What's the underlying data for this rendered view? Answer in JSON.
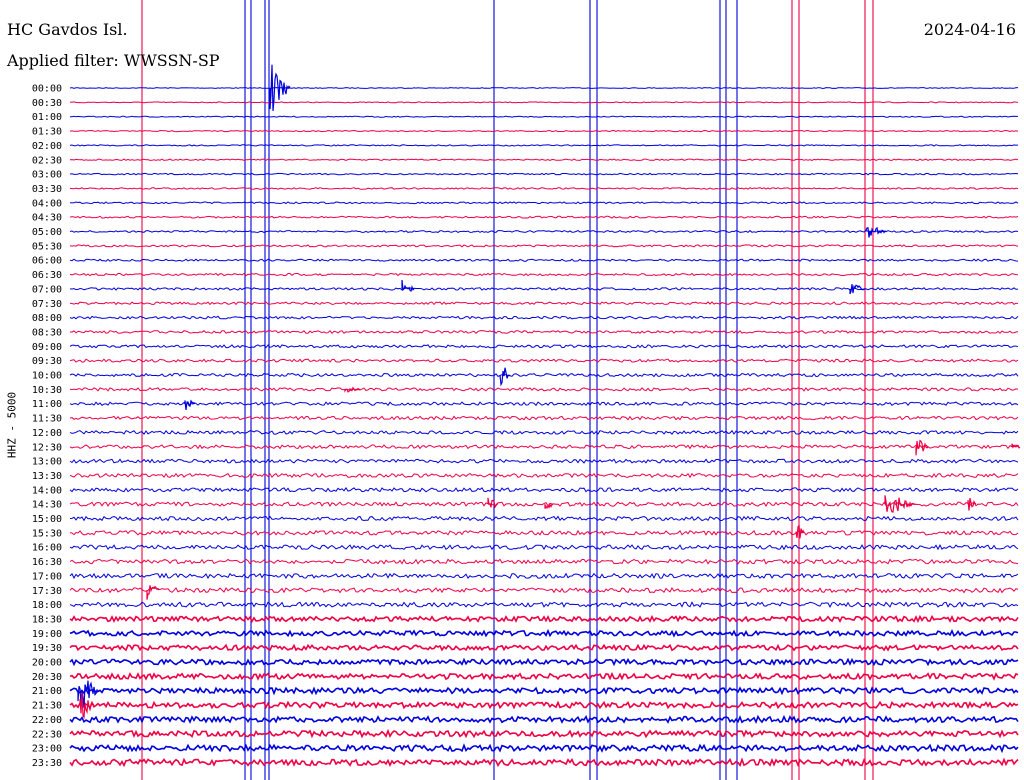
{
  "header": {
    "station": "HC Gavdos Isl.",
    "date": "2024-04-16",
    "filter": "Applied filter: WWSSN-SP"
  },
  "chart_data": {
    "type": "line",
    "ylabel": "HHZ - 5000",
    "row_labels": [
      "00:00",
      "00:30",
      "01:00",
      "01:30",
      "02:00",
      "02:30",
      "03:00",
      "03:30",
      "04:00",
      "04:30",
      "05:00",
      "05:30",
      "06:00",
      "06:30",
      "07:00",
      "07:30",
      "08:00",
      "08:30",
      "09:00",
      "09:30",
      "10:00",
      "10:30",
      "11:00",
      "11:30",
      "12:00",
      "12:30",
      "13:00",
      "13:30",
      "14:00",
      "14:30",
      "15:00",
      "15:30",
      "16:00",
      "16:30",
      "17:00",
      "17:30",
      "18:00",
      "18:30",
      "19:00",
      "19:30",
      "20:00",
      "20:30",
      "21:00",
      "21:30",
      "22:00",
      "22:30",
      "23:00",
      "23:30"
    ],
    "series_colors": [
      "#0000dd",
      "#ee0044"
    ],
    "grid": false
  }
}
